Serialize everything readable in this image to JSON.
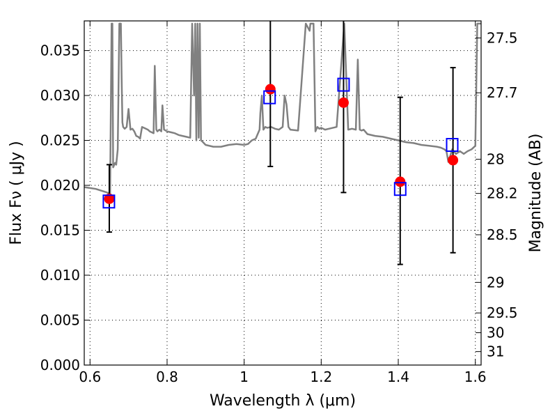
{
  "chart_data": {
    "type": "scatter",
    "title": "",
    "xlabel": "Wavelength  λ (μm)",
    "ylabel": "Flux  Fν  ( μJy )",
    "ylabel_right": "Magnitude (AB)",
    "xlim": [
      0.585,
      1.615
    ],
    "ylim": [
      0.0,
      0.0383
    ],
    "grid": true,
    "x_ticks": [
      0.6,
      0.8,
      1.0,
      1.2,
      1.4,
      1.6
    ],
    "x_tick_labels": [
      "0.6",
      "0.8",
      "1",
      "1.2",
      "1.4",
      "1.6"
    ],
    "y_ticks": [
      0.0,
      0.005,
      0.01,
      0.015,
      0.02,
      0.025,
      0.03,
      0.035
    ],
    "y_tick_labels": [
      "0.000",
      "0.005",
      "0.010",
      "0.015",
      "0.020",
      "0.025",
      "0.030",
      "0.035"
    ],
    "right_axis": {
      "label": "Magnitude (AB)",
      "tick_labels": [
        "27.5",
        "27.7",
        "28",
        "28.2",
        "28.5",
        "29",
        "29.5",
        "30",
        "31"
      ],
      "tick_flux": [
        0.0364,
        0.0303,
        0.0229,
        0.0191,
        0.0145,
        0.0092,
        0.0058,
        0.0036,
        0.0015
      ]
    },
    "series": [
      {
        "kind": "line",
        "color": "#808080",
        "x": [
          0.585,
          0.6,
          0.615,
          0.63,
          0.645,
          0.652,
          0.656,
          0.658,
          0.66,
          0.662,
          0.665,
          0.668,
          0.672,
          0.676,
          0.68,
          0.682,
          0.684,
          0.686,
          0.69,
          0.695,
          0.7,
          0.705,
          0.71,
          0.715,
          0.72,
          0.725,
          0.73,
          0.735,
          0.74,
          0.745,
          0.75,
          0.755,
          0.76,
          0.765,
          0.768,
          0.772,
          0.775,
          0.78,
          0.785,
          0.788,
          0.792,
          0.8,
          0.81,
          0.82,
          0.83,
          0.84,
          0.85,
          0.86,
          0.865,
          0.87,
          0.873,
          0.876,
          0.879,
          0.882,
          0.885,
          0.888,
          0.891,
          0.9,
          0.92,
          0.94,
          0.96,
          0.98,
          1.0,
          1.01,
          1.02,
          1.03,
          1.04,
          1.042,
          1.046,
          1.05,
          1.055,
          1.06,
          1.07,
          1.08,
          1.09,
          1.1,
          1.105,
          1.11,
          1.115,
          1.12,
          1.14,
          1.16,
          1.17,
          1.172,
          1.175,
          1.18,
          1.185,
          1.19,
          1.195,
          1.2,
          1.21,
          1.22,
          1.24,
          1.26,
          1.27,
          1.28,
          1.29,
          1.295,
          1.3,
          1.305,
          1.31,
          1.32,
          1.34,
          1.36,
          1.38,
          1.4,
          1.42,
          1.44,
          1.46,
          1.48,
          1.5,
          1.51,
          1.52,
          1.525,
          1.53,
          1.54,
          1.55,
          1.56,
          1.57,
          1.58,
          1.59,
          1.6,
          1.605,
          1.61,
          1.615
        ],
        "y": [
          0.0198,
          0.0197,
          0.0196,
          0.0194,
          0.0192,
          0.019,
          0.038,
          0.038,
          0.022,
          0.0222,
          0.0225,
          0.0223,
          0.024,
          0.038,
          0.038,
          0.032,
          0.027,
          0.0265,
          0.0263,
          0.0265,
          0.0285,
          0.0262,
          0.0263,
          0.026,
          0.0255,
          0.0254,
          0.0252,
          0.0265,
          0.0264,
          0.0263,
          0.0262,
          0.026,
          0.0259,
          0.0258,
          0.0333,
          0.0262,
          0.026,
          0.0262,
          0.026,
          0.0289,
          0.0262,
          0.026,
          0.0259,
          0.0258,
          0.0256,
          0.0255,
          0.0254,
          0.0253,
          0.038,
          0.03,
          0.038,
          0.025,
          0.038,
          0.0253,
          0.038,
          0.025,
          0.0249,
          0.0245,
          0.0243,
          0.0243,
          0.0245,
          0.0246,
          0.0245,
          0.0246,
          0.025,
          0.0252,
          0.0262,
          0.028,
          0.03,
          0.0262,
          0.0265,
          0.0264,
          0.0265,
          0.0263,
          0.0262,
          0.0265,
          0.03,
          0.029,
          0.0265,
          0.0262,
          0.0261,
          0.038,
          0.0372,
          0.038,
          0.038,
          0.038,
          0.026,
          0.0265,
          0.0263,
          0.0264,
          0.0262,
          0.0263,
          0.0265,
          0.038,
          0.0262,
          0.0263,
          0.0262,
          0.034,
          0.0262,
          0.0261,
          0.0262,
          0.0257,
          0.0255,
          0.0254,
          0.0252,
          0.025,
          0.0248,
          0.0247,
          0.0245,
          0.0244,
          0.0243,
          0.0242,
          0.024,
          0.0238,
          0.0226,
          0.024,
          0.0235,
          0.0238,
          0.0235,
          0.0238,
          0.024,
          0.0244,
          0.038,
          0.038,
          0.038
        ]
      },
      {
        "kind": "errorbar",
        "color": "#000000",
        "x": [
          0.65,
          1.068,
          1.258,
          1.405,
          1.542
        ],
        "y": [
          0.0185,
          0.0307,
          0.0292,
          0.0204,
          0.0228
        ],
        "err_low": [
          0.0037,
          0.0086,
          0.01,
          0.0092,
          0.0103
        ],
        "err_high": [
          0.0038,
          0.0088,
          0.01,
          0.0094,
          0.0103
        ]
      },
      {
        "kind": "markers",
        "marker": "circle",
        "color": "#ff0000",
        "x": [
          0.65,
          1.068,
          1.258,
          1.405,
          1.542
        ],
        "y": [
          0.0185,
          0.0307,
          0.0292,
          0.0204,
          0.0228
        ]
      },
      {
        "kind": "markers",
        "marker": "square",
        "color": "#0000ff",
        "x": [
          0.649,
          1.066,
          1.258,
          1.405,
          1.54
        ],
        "y": [
          0.0182,
          0.0298,
          0.0312,
          0.0196,
          0.0245
        ]
      }
    ]
  }
}
